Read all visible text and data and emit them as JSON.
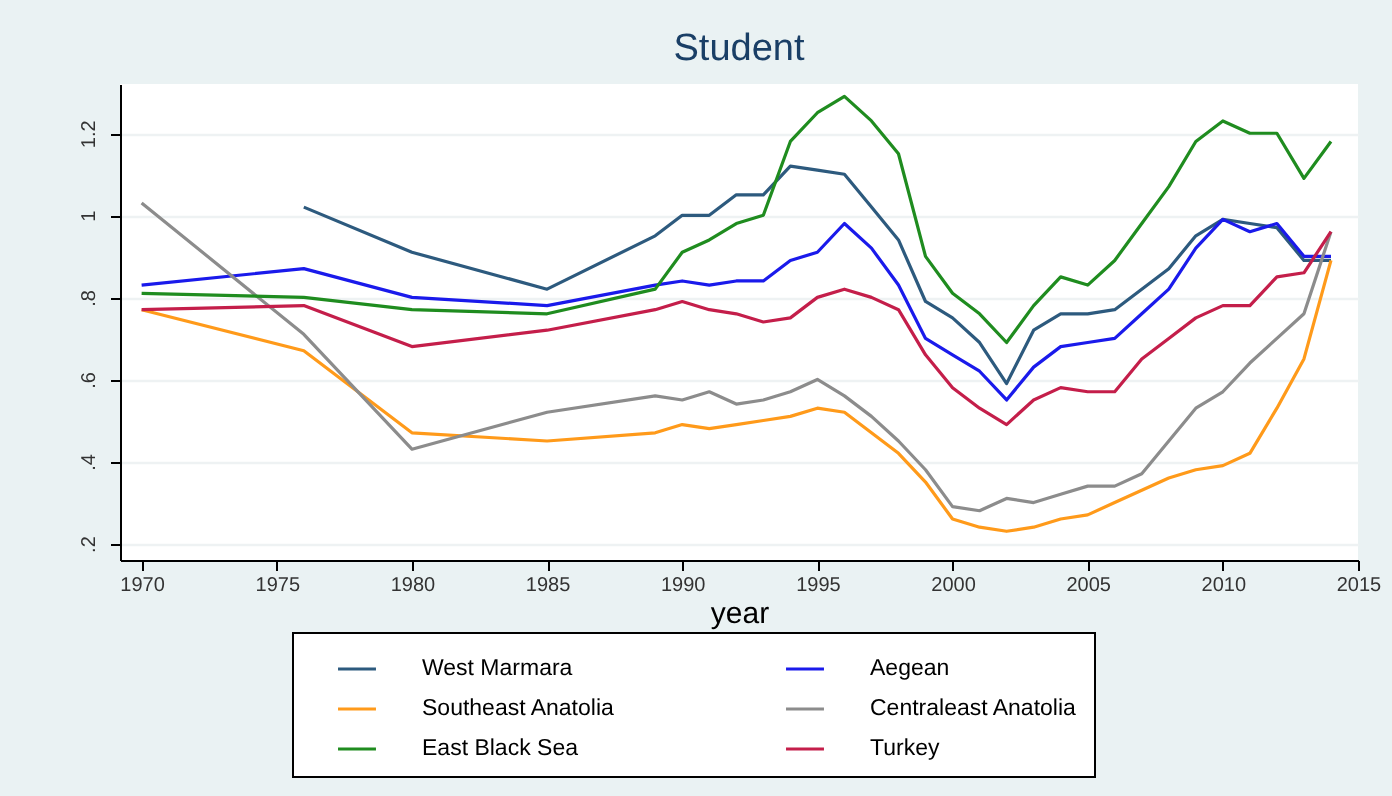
{
  "chart_data": {
    "type": "line",
    "title": "Student",
    "xlabel": "year",
    "x": [
      1970,
      1976,
      1980,
      1985,
      1989,
      1990,
      1991,
      1992,
      1993,
      1994,
      1995,
      1996,
      1997,
      1998,
      1999,
      2000,
      2001,
      2002,
      2003,
      2004,
      2005,
      2006,
      2007,
      2008,
      2009,
      2010,
      2011,
      2012,
      2013,
      2014
    ],
    "series": [
      {
        "name": "West Marmara",
        "color": "#2d5a7e",
        "values": [
          null,
          1.02,
          0.91,
          0.82,
          0.95,
          1.0,
          1.0,
          1.05,
          1.05,
          1.12,
          1.11,
          1.1,
          1.02,
          0.94,
          0.79,
          0.75,
          0.69,
          0.59,
          0.72,
          0.76,
          0.76,
          0.77,
          0.82,
          0.87,
          0.95,
          0.99,
          0.98,
          0.97,
          0.89,
          0.89
        ]
      },
      {
        "name": "Aegean",
        "color": "#1a1aeb",
        "values": [
          0.83,
          0.87,
          0.8,
          0.78,
          0.83,
          0.84,
          0.83,
          0.84,
          0.84,
          0.89,
          0.91,
          0.98,
          0.92,
          0.83,
          0.7,
          0.66,
          0.62,
          0.55,
          0.63,
          0.68,
          0.69,
          0.7,
          0.76,
          0.82,
          0.92,
          0.99,
          0.96,
          0.98,
          0.9,
          0.9
        ]
      },
      {
        "name": "Southeast Anatolia",
        "color": "#ff9a1a",
        "values": [
          0.77,
          0.67,
          0.47,
          0.45,
          0.47,
          0.49,
          0.48,
          0.49,
          0.5,
          0.51,
          0.53,
          0.52,
          0.47,
          0.42,
          0.35,
          0.26,
          0.24,
          0.23,
          0.24,
          0.26,
          0.27,
          0.3,
          0.33,
          0.36,
          0.38,
          0.39,
          0.42,
          0.53,
          0.65,
          0.89
        ]
      },
      {
        "name": "Centraleast Anatolia",
        "color": "#8c8c8c",
        "values": [
          1.03,
          0.71,
          0.43,
          0.52,
          0.56,
          0.55,
          0.57,
          0.54,
          0.55,
          0.57,
          0.6,
          0.56,
          0.51,
          0.45,
          0.38,
          0.29,
          0.28,
          0.31,
          0.3,
          0.32,
          0.34,
          0.34,
          0.37,
          0.45,
          0.53,
          0.57,
          0.64,
          0.7,
          0.76,
          0.96
        ]
      },
      {
        "name": "East Black Sea",
        "color": "#1f8c1f",
        "values": [
          0.81,
          0.8,
          0.77,
          0.76,
          0.82,
          0.91,
          0.94,
          0.98,
          1.0,
          1.18,
          1.25,
          1.29,
          1.23,
          1.15,
          0.9,
          0.81,
          0.76,
          0.69,
          0.78,
          0.85,
          0.83,
          0.89,
          0.98,
          1.07,
          1.18,
          1.23,
          1.2,
          1.2,
          1.09,
          1.18
        ]
      },
      {
        "name": "Turkey",
        "color": "#c41e4a",
        "values": [
          0.77,
          0.78,
          0.68,
          0.72,
          0.77,
          0.79,
          0.77,
          0.76,
          0.74,
          0.75,
          0.8,
          0.82,
          0.8,
          0.77,
          0.66,
          0.58,
          0.53,
          0.49,
          0.55,
          0.58,
          0.57,
          0.57,
          0.65,
          0.7,
          0.75,
          0.78,
          0.78,
          0.85,
          0.86,
          0.96
        ]
      }
    ],
    "xlim": [
      1969.2,
      2015
    ],
    "xticks": [
      1970,
      1975,
      1980,
      1985,
      1990,
      1995,
      2000,
      2005,
      2010,
      2015
    ],
    "ylim": [
      0.16,
      1.32
    ],
    "yticks": [
      {
        "value": 0.2,
        "label": ".2"
      },
      {
        "value": 0.4,
        "label": ".4"
      },
      {
        "value": 0.6,
        "label": ".6"
      },
      {
        "value": 0.8,
        "label": ".8"
      },
      {
        "value": 1,
        "label": "1"
      },
      {
        "value": 1.2,
        "label": "1.2"
      }
    ],
    "grid": "y",
    "legend": "bottom"
  }
}
